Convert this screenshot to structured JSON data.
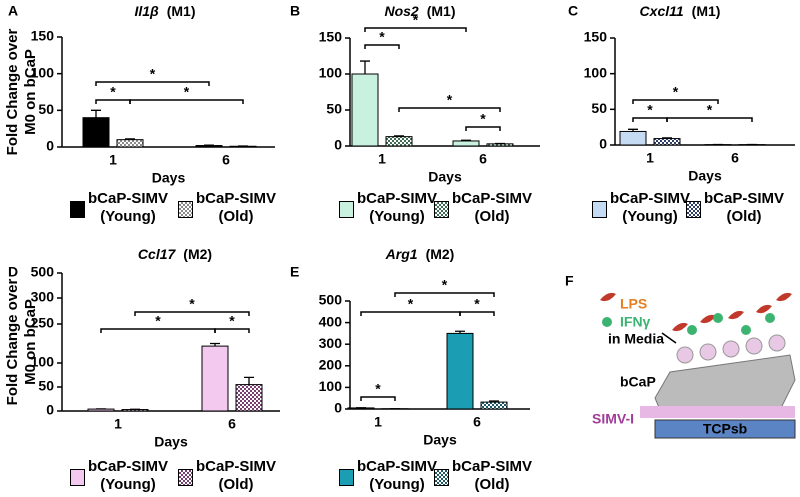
{
  "chart_data": [
    {
      "type": "bar",
      "panel": "A",
      "title": "Il1β",
      "subtitle": "(M1)",
      "y_label": "Fold Change over M0 on bCaP",
      "x_label": "Days",
      "categories": [
        "1",
        "6"
      ],
      "ylim": [
        0,
        150
      ],
      "yticks": [
        0,
        50,
        100,
        150
      ],
      "series": [
        {
          "name": "bCaP-SIMV (Young)",
          "color": "#000000",
          "hatch": false,
          "values": [
            40,
            2
          ],
          "errors": [
            10,
            0.5
          ]
        },
        {
          "name": "bCaP-SIMV (Old)",
          "color": "#8c8c8c",
          "hatch": true,
          "values": [
            10,
            1
          ],
          "errors": [
            1,
            0.3
          ]
        }
      ],
      "significance": [
        "*",
        "*",
        "*"
      ]
    },
    {
      "type": "bar",
      "panel": "B",
      "title": "Nos2",
      "subtitle": "(M1)",
      "x_label": "Days",
      "categories": [
        "1",
        "6"
      ],
      "ylim": [
        0,
        150
      ],
      "yticks": [
        0,
        50,
        100,
        150
      ],
      "series": [
        {
          "name": "bCaP-SIMV (Young)",
          "color": "#c8f2df",
          "hatch": false,
          "values": [
            100,
            7
          ],
          "errors": [
            18,
            1
          ]
        },
        {
          "name": "bCaP-SIMV (Old)",
          "color": "#3d6e55",
          "hatch": true,
          "values": [
            13,
            3
          ],
          "errors": [
            1,
            0.5
          ]
        }
      ],
      "significance": [
        "*",
        "*",
        "*",
        "*"
      ]
    },
    {
      "type": "bar",
      "panel": "C",
      "title": "Cxcl11",
      "subtitle": "(M1)",
      "x_label": "Days",
      "categories": [
        "1",
        "6"
      ],
      "ylim": [
        0,
        150
      ],
      "yticks": [
        0,
        50,
        100,
        150
      ],
      "series": [
        {
          "name": "bCaP-SIMV (Young)",
          "color": "#c5dbf4",
          "hatch": false,
          "values": [
            19,
            0.5
          ],
          "errors": [
            3,
            0.2
          ]
        },
        {
          "name": "bCaP-SIMV (Old)",
          "color": "#2f3f6a",
          "hatch": true,
          "values": [
            9,
            0.5
          ],
          "errors": [
            1,
            0.2
          ]
        }
      ],
      "significance": [
        "*",
        "*",
        "*"
      ]
    },
    {
      "type": "bar",
      "panel": "D",
      "title": "Ccl17",
      "subtitle": "(M2)",
      "y_label": "Fold Change over M0 on bCaP",
      "x_label": "Days",
      "categories": [
        "1",
        "6"
      ],
      "ylim": [
        0,
        500
      ],
      "yticks": [
        0,
        50,
        100,
        250,
        300,
        500
      ],
      "series": [
        {
          "name": "bCaP-SIMV (Young)",
          "color": "#f3c9f0",
          "hatch": false,
          "values": [
            4,
            165
          ],
          "errors": [
            0.5,
            10
          ]
        },
        {
          "name": "bCaP-SIMV (Old)",
          "color": "#7a3f73",
          "hatch": true,
          "values": [
            3,
            55
          ],
          "errors": [
            0.5,
            15
          ]
        }
      ],
      "significance": [
        "*",
        "*",
        "*"
      ]
    },
    {
      "type": "bar",
      "panel": "E",
      "title": "Arg1",
      "subtitle": "(M2)",
      "x_label": "Days",
      "categories": [
        "1",
        "6"
      ],
      "ylim": [
        0,
        500
      ],
      "yticks": [
        0,
        100,
        200,
        300,
        400,
        500
      ],
      "series": [
        {
          "name": "bCaP-SIMV (Young)",
          "color": "#1b9db3",
          "hatch": false,
          "values": [
            5,
            350
          ],
          "errors": [
            0.5,
            10
          ]
        },
        {
          "name": "bCaP-SIMV (Old)",
          "color": "#1d5a66",
          "hatch": true,
          "values": [
            1,
            32
          ],
          "errors": [
            0.3,
            5
          ]
        }
      ],
      "significance": [
        "*",
        "*",
        "*",
        "*"
      ]
    }
  ],
  "diagram": {
    "label": "F",
    "lps": "LPS",
    "ifn": "IFNγ",
    "media": "in Media",
    "cell": "bCaP",
    "coating": "SIMV-I",
    "substrate": "TCPsb"
  }
}
